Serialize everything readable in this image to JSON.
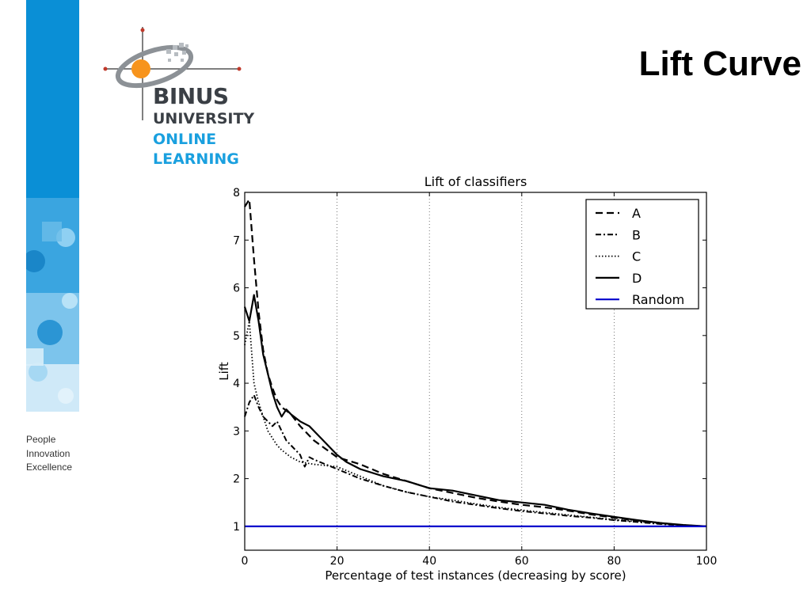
{
  "slide": {
    "title": "Lift Curve",
    "tagline": [
      "People",
      "Innovation",
      "Excellence"
    ]
  },
  "brand": {
    "line1": "BINUS",
    "line2": "UNIVERSITY",
    "line3": "ONLINE",
    "line4": "LEARNING",
    "colors": {
      "blue": "#0a8fd6",
      "orange": "#f7941d",
      "dark": "#3a3f45",
      "cyan": "#1aa0df"
    }
  },
  "chart_data": {
    "type": "line",
    "title": "Lift of classifiers",
    "xlabel": "Percentage of test instances (decreasing by score)",
    "ylabel": "Lift",
    "xlim": [
      0,
      100
    ],
    "ylim": [
      0.5,
      8
    ],
    "xticks": [
      0,
      20,
      40,
      60,
      80,
      100
    ],
    "yticks": [
      1,
      2,
      3,
      4,
      5,
      6,
      7,
      8
    ],
    "grid": "vertical dotted",
    "legend_position": "top-right",
    "series": [
      {
        "name": "A",
        "style": "dashed",
        "color": "#000000",
        "points": [
          [
            0,
            7.7
          ],
          [
            1,
            7.85
          ],
          [
            2,
            6.6
          ],
          [
            3,
            5.5
          ],
          [
            4,
            4.7
          ],
          [
            5,
            4.2
          ],
          [
            6,
            3.9
          ],
          [
            7,
            3.65
          ],
          [
            8,
            3.5
          ],
          [
            10,
            3.35
          ],
          [
            12,
            3.1
          ],
          [
            15,
            2.8
          ],
          [
            20,
            2.45
          ],
          [
            25,
            2.3
          ],
          [
            30,
            2.1
          ],
          [
            35,
            1.95
          ],
          [
            40,
            1.8
          ],
          [
            45,
            1.7
          ],
          [
            50,
            1.6
          ],
          [
            55,
            1.52
          ],
          [
            60,
            1.45
          ],
          [
            65,
            1.4
          ],
          [
            70,
            1.33
          ],
          [
            75,
            1.25
          ],
          [
            80,
            1.18
          ],
          [
            85,
            1.12
          ],
          [
            90,
            1.07
          ],
          [
            95,
            1.02
          ],
          [
            100,
            1.0
          ]
        ]
      },
      {
        "name": "B",
        "style": "dashdot",
        "color": "#000000",
        "points": [
          [
            0,
            3.3
          ],
          [
            1,
            3.6
          ],
          [
            2,
            3.75
          ],
          [
            3,
            3.5
          ],
          [
            4,
            3.3
          ],
          [
            5,
            3.2
          ],
          [
            6,
            3.1
          ],
          [
            7,
            3.2
          ],
          [
            8,
            3.0
          ],
          [
            9,
            2.8
          ],
          [
            10,
            2.7
          ],
          [
            11,
            2.6
          ],
          [
            12,
            2.5
          ],
          [
            13,
            2.25
          ],
          [
            14,
            2.45
          ],
          [
            15,
            2.4
          ],
          [
            20,
            2.2
          ],
          [
            25,
            2.0
          ],
          [
            30,
            1.85
          ],
          [
            35,
            1.72
          ],
          [
            40,
            1.62
          ],
          [
            45,
            1.52
          ],
          [
            50,
            1.45
          ],
          [
            55,
            1.38
          ],
          [
            60,
            1.32
          ],
          [
            65,
            1.27
          ],
          [
            70,
            1.22
          ],
          [
            75,
            1.18
          ],
          [
            80,
            1.13
          ],
          [
            85,
            1.09
          ],
          [
            90,
            1.05
          ],
          [
            95,
            1.02
          ],
          [
            100,
            1.0
          ]
        ]
      },
      {
        "name": "C",
        "style": "dotted",
        "color": "#000000",
        "points": [
          [
            0,
            4.8
          ],
          [
            1,
            5.3
          ],
          [
            2,
            4.0
          ],
          [
            3,
            3.6
          ],
          [
            4,
            3.3
          ],
          [
            5,
            3.0
          ],
          [
            6,
            2.85
          ],
          [
            7,
            2.7
          ],
          [
            8,
            2.6
          ],
          [
            10,
            2.45
          ],
          [
            12,
            2.35
          ],
          [
            15,
            2.3
          ],
          [
            20,
            2.25
          ],
          [
            25,
            2.05
          ],
          [
            30,
            1.85
          ],
          [
            35,
            1.72
          ],
          [
            40,
            1.62
          ],
          [
            45,
            1.55
          ],
          [
            50,
            1.47
          ],
          [
            55,
            1.4
          ],
          [
            60,
            1.34
          ],
          [
            65,
            1.29
          ],
          [
            70,
            1.24
          ],
          [
            75,
            1.19
          ],
          [
            80,
            1.14
          ],
          [
            85,
            1.1
          ],
          [
            90,
            1.06
          ],
          [
            95,
            1.03
          ],
          [
            100,
            1.0
          ]
        ]
      },
      {
        "name": "D",
        "style": "solid",
        "color": "#000000",
        "points": [
          [
            0,
            5.6
          ],
          [
            1,
            5.3
          ],
          [
            2,
            5.85
          ],
          [
            3,
            5.3
          ],
          [
            4,
            4.6
          ],
          [
            5,
            4.2
          ],
          [
            6,
            3.8
          ],
          [
            7,
            3.5
          ],
          [
            8,
            3.3
          ],
          [
            9,
            3.45
          ],
          [
            10,
            3.35
          ],
          [
            12,
            3.2
          ],
          [
            14,
            3.1
          ],
          [
            16,
            2.9
          ],
          [
            18,
            2.7
          ],
          [
            20,
            2.5
          ],
          [
            22,
            2.35
          ],
          [
            25,
            2.2
          ],
          [
            30,
            2.05
          ],
          [
            35,
            1.95
          ],
          [
            40,
            1.8
          ],
          [
            45,
            1.75
          ],
          [
            50,
            1.65
          ],
          [
            55,
            1.55
          ],
          [
            60,
            1.5
          ],
          [
            65,
            1.45
          ],
          [
            70,
            1.35
          ],
          [
            75,
            1.27
          ],
          [
            80,
            1.2
          ],
          [
            85,
            1.13
          ],
          [
            90,
            1.07
          ],
          [
            95,
            1.03
          ],
          [
            100,
            1.0
          ]
        ]
      },
      {
        "name": "Random",
        "style": "solid",
        "color": "#0000cc",
        "points": [
          [
            0,
            1.0
          ],
          [
            100,
            1.0
          ]
        ]
      }
    ]
  }
}
